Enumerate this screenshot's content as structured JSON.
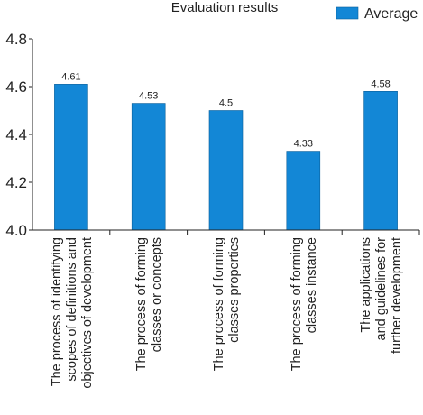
{
  "chart_data": {
    "type": "bar",
    "title": "Evaluation results",
    "xlabel": "",
    "ylabel": "",
    "ylim": [
      4.0,
      4.8
    ],
    "yticks": [
      "4.0",
      "4.2",
      "4.4",
      "4.6",
      "4.8"
    ],
    "grid": false,
    "legend_position": "top-right",
    "categories": [
      [
        "The process of identifying",
        "scopes of definitions and",
        "objectives of development"
      ],
      [
        "The process of forming",
        "classes or concepts"
      ],
      [
        "The process of forming",
        "classes properties"
      ],
      [
        "The process of forming",
        "classes instance"
      ],
      [
        "The applications",
        "and guidelines for",
        "further development"
      ]
    ],
    "series": [
      {
        "name": "Average",
        "color": "#1387d6",
        "values": [
          4.61,
          4.53,
          4.5,
          4.33,
          4.58
        ],
        "labels": [
          "4.61",
          "4.53",
          "4.5",
          "4.33",
          "4.58"
        ]
      }
    ]
  }
}
